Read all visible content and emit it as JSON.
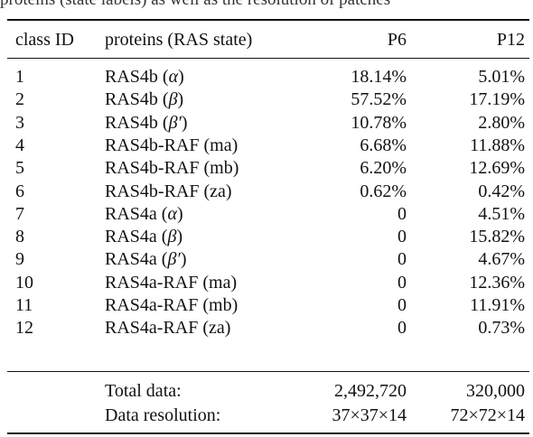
{
  "caption_fragment": "proteins (state labels) as well as the resolution of patches",
  "columns": {
    "class_id": "class ID",
    "proteins": "proteins (RAS state)",
    "p6": "P6",
    "p12": "P12"
  },
  "rows": [
    {
      "id": "1",
      "name": "RAS4b",
      "state": "α",
      "p6": "18.14%",
      "p12": "5.01%"
    },
    {
      "id": "2",
      "name": "RAS4b",
      "state": "β",
      "p6": "57.52%",
      "p12": "17.19%"
    },
    {
      "id": "3",
      "name": "RAS4b",
      "state": "β′",
      "p6": "10.78%",
      "p12": "2.80%"
    },
    {
      "id": "4",
      "name": "RAS4b-RAF",
      "state": "ma",
      "p6": "6.68%",
      "p12": "11.88%"
    },
    {
      "id": "5",
      "name": "RAS4b-RAF",
      "state": "mb",
      "p6": "6.20%",
      "p12": "12.69%"
    },
    {
      "id": "6",
      "name": "RAS4b-RAF",
      "state": "za",
      "p6": "0.62%",
      "p12": "0.42%"
    },
    {
      "id": "7",
      "name": "RAS4a",
      "state": "α",
      "p6": "0",
      "p12": "4.51%"
    },
    {
      "id": "8",
      "name": "RAS4a",
      "state": "β",
      "p6": "0",
      "p12": "15.82%"
    },
    {
      "id": "9",
      "name": "RAS4a",
      "state": "β′",
      "p6": "0",
      "p12": "4.67%"
    },
    {
      "id": "10",
      "name": "RAS4a-RAF",
      "state": "ma",
      "p6": "0",
      "p12": "12.36%"
    },
    {
      "id": "11",
      "name": "RAS4a-RAF",
      "state": "mb",
      "p6": "0",
      "p12": "11.91%"
    },
    {
      "id": "12",
      "name": "RAS4a-RAF",
      "state": "za",
      "p6": "0",
      "p12": "0.73%"
    }
  ],
  "summary": {
    "total_label": "Total data:",
    "total_p6": "2,492,720",
    "total_p12": "320,000",
    "resolution_label": "Data resolution:",
    "resolution_p6": "37×37×14",
    "resolution_p12": "72×72×14"
  }
}
